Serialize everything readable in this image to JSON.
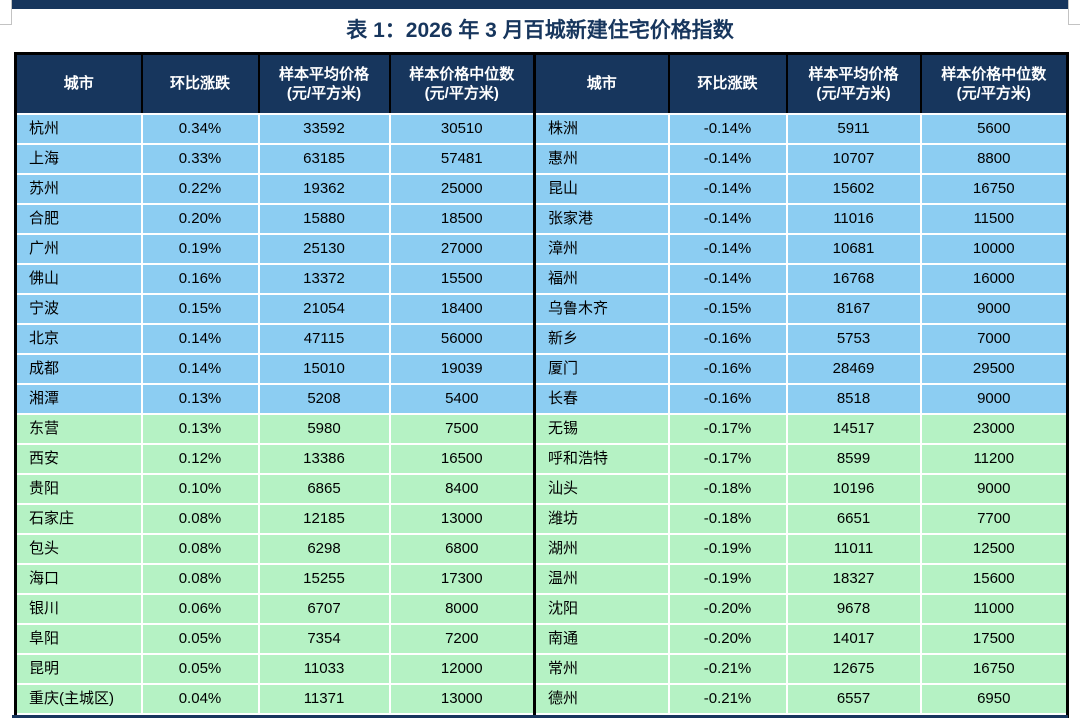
{
  "title": "表 1：2026 年 3 月百城新建住宅价格指数",
  "colors": {
    "navy": "#17365D",
    "section_blue": "#8CCDF2",
    "section_green": "#B5F2C4",
    "grid_white": "#ffffff",
    "outer_border": "#000000",
    "header_text": "#ffffff",
    "title_text": "#17365D"
  },
  "table": {
    "headers": [
      {
        "label": "城市",
        "sub": ""
      },
      {
        "label": "环比涨跌",
        "sub": ""
      },
      {
        "label": "样本平均价格",
        "sub": "(元/平方米)"
      },
      {
        "label": "样本价格中位数",
        "sub": "(元/平方米)"
      }
    ],
    "blue_section_rows": 10,
    "left_rows": [
      {
        "city": "杭州",
        "change": "0.34%",
        "avg": "33592",
        "median": "30510"
      },
      {
        "city": "上海",
        "change": "0.33%",
        "avg": "63185",
        "median": "57481"
      },
      {
        "city": "苏州",
        "change": "0.22%",
        "avg": "19362",
        "median": "25000"
      },
      {
        "city": "合肥",
        "change": "0.20%",
        "avg": "15880",
        "median": "18500"
      },
      {
        "city": "广州",
        "change": "0.19%",
        "avg": "25130",
        "median": "27000"
      },
      {
        "city": "佛山",
        "change": "0.16%",
        "avg": "13372",
        "median": "15500"
      },
      {
        "city": "宁波",
        "change": "0.15%",
        "avg": "21054",
        "median": "18400"
      },
      {
        "city": "北京",
        "change": "0.14%",
        "avg": "47115",
        "median": "56000"
      },
      {
        "city": "成都",
        "change": "0.14%",
        "avg": "15010",
        "median": "19039"
      },
      {
        "city": "湘潭",
        "change": "0.13%",
        "avg": "5208",
        "median": "5400"
      },
      {
        "city": "东营",
        "change": "0.13%",
        "avg": "5980",
        "median": "7500"
      },
      {
        "city": "西安",
        "change": "0.12%",
        "avg": "13386",
        "median": "16500"
      },
      {
        "city": "贵阳",
        "change": "0.10%",
        "avg": "6865",
        "median": "8400"
      },
      {
        "city": "石家庄",
        "change": "0.08%",
        "avg": "12185",
        "median": "13000"
      },
      {
        "city": "包头",
        "change": "0.08%",
        "avg": "6298",
        "median": "6800"
      },
      {
        "city": "海口",
        "change": "0.08%",
        "avg": "15255",
        "median": "17300"
      },
      {
        "city": "银川",
        "change": "0.06%",
        "avg": "6707",
        "median": "8000"
      },
      {
        "city": "阜阳",
        "change": "0.05%",
        "avg": "7354",
        "median": "7200"
      },
      {
        "city": "昆明",
        "change": "0.05%",
        "avg": "11033",
        "median": "12000"
      },
      {
        "city": "重庆(主城区)",
        "change": "0.04%",
        "avg": "11371",
        "median": "13000"
      }
    ],
    "right_rows": [
      {
        "city": "株洲",
        "change": "-0.14%",
        "avg": "5911",
        "median": "5600"
      },
      {
        "city": "惠州",
        "change": "-0.14%",
        "avg": "10707",
        "median": "8800"
      },
      {
        "city": "昆山",
        "change": "-0.14%",
        "avg": "15602",
        "median": "16750"
      },
      {
        "city": "张家港",
        "change": "-0.14%",
        "avg": "11016",
        "median": "11500"
      },
      {
        "city": "漳州",
        "change": "-0.14%",
        "avg": "10681",
        "median": "10000"
      },
      {
        "city": "福州",
        "change": "-0.14%",
        "avg": "16768",
        "median": "16000"
      },
      {
        "city": "乌鲁木齐",
        "change": "-0.15%",
        "avg": "8167",
        "median": "9000"
      },
      {
        "city": "新乡",
        "change": "-0.16%",
        "avg": "5753",
        "median": "7000"
      },
      {
        "city": "厦门",
        "change": "-0.16%",
        "avg": "28469",
        "median": "29500"
      },
      {
        "city": "长春",
        "change": "-0.16%",
        "avg": "8518",
        "median": "9000"
      },
      {
        "city": "无锡",
        "change": "-0.17%",
        "avg": "14517",
        "median": "23000"
      },
      {
        "city": "呼和浩特",
        "change": "-0.17%",
        "avg": "8599",
        "median": "11200"
      },
      {
        "city": "汕头",
        "change": "-0.18%",
        "avg": "10196",
        "median": "9000"
      },
      {
        "city": "潍坊",
        "change": "-0.18%",
        "avg": "6651",
        "median": "7700"
      },
      {
        "city": "湖州",
        "change": "-0.19%",
        "avg": "11011",
        "median": "12500"
      },
      {
        "city": "温州",
        "change": "-0.19%",
        "avg": "18327",
        "median": "15600"
      },
      {
        "city": "沈阳",
        "change": "-0.20%",
        "avg": "9678",
        "median": "11000"
      },
      {
        "city": "南通",
        "change": "-0.20%",
        "avg": "14017",
        "median": "17500"
      },
      {
        "city": "常州",
        "change": "-0.21%",
        "avg": "12675",
        "median": "16750"
      },
      {
        "city": "德州",
        "change": "-0.21%",
        "avg": "6557",
        "median": "6950"
      }
    ]
  }
}
